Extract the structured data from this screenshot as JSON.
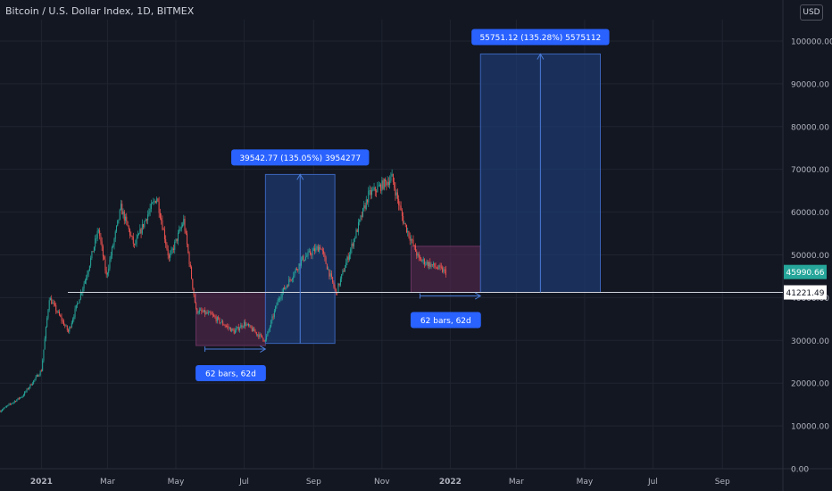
{
  "header": {
    "title": "Bitcoin / U.S. Dollar Index, 1D, BITMEX",
    "currency": "USD"
  },
  "colors": {
    "background": "#131722",
    "up": "#26a69a",
    "down": "#ef5350",
    "accent": "#2962ff",
    "box_blue": "#1e3a6e",
    "box_purple": "#4a2545",
    "grid": "#1f2430",
    "axis_text": "#b2b5be",
    "current_price": "#26a69a"
  },
  "chart_data": {
    "type": "candlestick",
    "title": "Bitcoin / U.S. Dollar Index, 1D, BITMEX",
    "xlabel": "",
    "ylabel": "",
    "ylim": [
      0,
      105000
    ],
    "xlim": [
      "2020-11-25",
      "2022-10-25"
    ],
    "x_ticks": [
      {
        "date": "2021-01-01",
        "label": "2021"
      },
      {
        "date": "2021-03-01",
        "label": "Mar"
      },
      {
        "date": "2021-05-01",
        "label": "May"
      },
      {
        "date": "2021-07-01",
        "label": "Jul"
      },
      {
        "date": "2021-09-01",
        "label": "Sep"
      },
      {
        "date": "2021-11-01",
        "label": "Nov"
      },
      {
        "date": "2022-01-01",
        "label": "2022"
      },
      {
        "date": "2022-03-01",
        "label": "Mar"
      },
      {
        "date": "2022-05-01",
        "label": "May"
      },
      {
        "date": "2022-07-01",
        "label": "Jul"
      },
      {
        "date": "2022-09-01",
        "label": "Sep"
      }
    ],
    "y_ticks": [
      {
        "value": 0,
        "label": "0.00"
      },
      {
        "value": 10000,
        "label": "10000.00"
      },
      {
        "value": 20000,
        "label": "20000.00"
      },
      {
        "value": 30000,
        "label": "30000.00"
      },
      {
        "value": 40000,
        "label": "40000.00"
      },
      {
        "value": 50000,
        "label": "50000.00"
      },
      {
        "value": 60000,
        "label": "60000.00"
      },
      {
        "value": 70000,
        "label": "70000.00"
      },
      {
        "value": 80000,
        "label": "80000.00"
      },
      {
        "value": 90000,
        "label": "90000.00"
      },
      {
        "value": 100000,
        "label": "100000.00"
      }
    ],
    "price_path": [
      [
        "2020-11-25",
        13500
      ],
      [
        "2020-12-15",
        17000
      ],
      [
        "2021-01-01",
        23000
      ],
      [
        "2021-01-08",
        40000
      ],
      [
        "2021-01-25",
        32000
      ],
      [
        "2021-02-10",
        45000
      ],
      [
        "2021-02-21",
        56000
      ],
      [
        "2021-02-28",
        45000
      ],
      [
        "2021-03-13",
        61000
      ],
      [
        "2021-03-25",
        52000
      ],
      [
        "2021-04-05",
        59000
      ],
      [
        "2021-04-14",
        63500
      ],
      [
        "2021-04-25",
        49000
      ],
      [
        "2021-05-08",
        58000
      ],
      [
        "2021-05-19",
        37000
      ],
      [
        "2021-06-01",
        36000
      ],
      [
        "2021-06-22",
        32000
      ],
      [
        "2021-07-01",
        34000
      ],
      [
        "2021-07-20",
        30000
      ],
      [
        "2021-08-01",
        40000
      ],
      [
        "2021-08-22",
        49000
      ],
      [
        "2021-09-07",
        52000
      ],
      [
        "2021-09-21",
        41000
      ],
      [
        "2021-10-10",
        56000
      ],
      [
        "2021-10-20",
        64000
      ],
      [
        "2021-11-10",
        68000
      ],
      [
        "2021-11-20",
        58000
      ],
      [
        "2021-12-04",
        49000
      ],
      [
        "2021-12-20",
        47000
      ],
      [
        "2021-12-28",
        46000
      ]
    ],
    "horizontal_line": {
      "value": 41221.49,
      "label": "41221.49"
    },
    "current_price": {
      "value": 45990.66,
      "label": "45990.66"
    },
    "boxes": [
      {
        "kind": "date_range",
        "x0": "2021-05-19",
        "x1": "2021-07-20",
        "y0": 28800,
        "y1": 41221,
        "color": "purple",
        "label": "62 bars, 62d",
        "label_pos": "below"
      },
      {
        "kind": "price_range",
        "x0": "2021-07-20",
        "x1": "2021-09-20",
        "y0": 29300,
        "y1": 68800,
        "color": "blue",
        "label": "39542.77 (135.05%) 3954277",
        "label_pos": "above"
      },
      {
        "kind": "date_range",
        "x0": "2021-11-27",
        "x1": "2022-01-28",
        "y0": 41221,
        "y1": 52000,
        "color": "purple",
        "label": "62 bars, 62d",
        "label_pos": "below"
      },
      {
        "kind": "price_range",
        "x0": "2022-01-28",
        "x1": "2022-05-15",
        "y0": 41221,
        "y1": 96972,
        "color": "blue",
        "label": "55751.12 (135.28%) 5575112",
        "label_pos": "above"
      }
    ]
  }
}
